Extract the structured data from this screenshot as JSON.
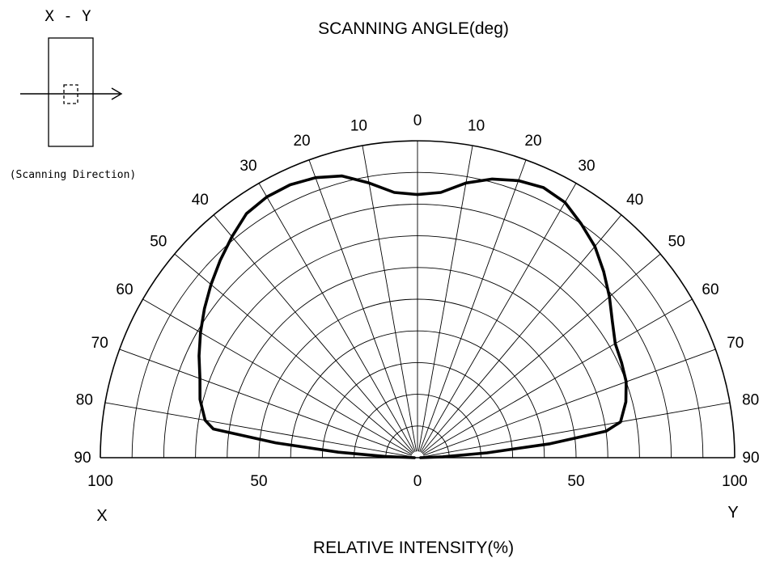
{
  "inset": {
    "title": "X - Y",
    "caption": "(Scanning Direction)"
  },
  "chart_data": {
    "type": "polar",
    "title": "SCANNING ANGLE(deg)",
    "xlabel": "RELATIVE INTENSITY(%)",
    "left_end_label": "X",
    "right_end_label": "Y",
    "angle_ticks": [
      0,
      10,
      20,
      30,
      40,
      50,
      60,
      70,
      80,
      90
    ],
    "intensity_ticks": [
      "100",
      "50",
      "0",
      "50",
      "100"
    ],
    "radial_range": [
      0,
      100
    ],
    "angle_range": [
      -90,
      90
    ],
    "grid": true,
    "series": [
      {
        "angles": [
          -90,
          -88,
          -86,
          -84,
          -82,
          -80,
          -75,
          -70,
          -65,
          -60,
          -55,
          -50,
          -45,
          -40,
          -35,
          -30,
          -25,
          -20,
          -15,
          -10,
          -5,
          0,
          5,
          10,
          15,
          20,
          25,
          30,
          35,
          40,
          45,
          50,
          55,
          60,
          65,
          70,
          75,
          80,
          82,
          84,
          86,
          88,
          90
        ],
        "values": [
          1,
          10,
          25,
          45,
          65,
          68,
          71,
          73,
          76,
          79,
          82,
          85,
          88,
          91,
          94,
          95,
          95,
          94,
          92,
          88,
          84,
          83,
          84,
          88,
          91,
          93,
          94,
          93,
          90,
          87,
          83,
          79,
          75,
          72,
          71,
          70,
          68,
          65,
          60,
          42,
          22,
          8,
          1
        ]
      }
    ]
  }
}
